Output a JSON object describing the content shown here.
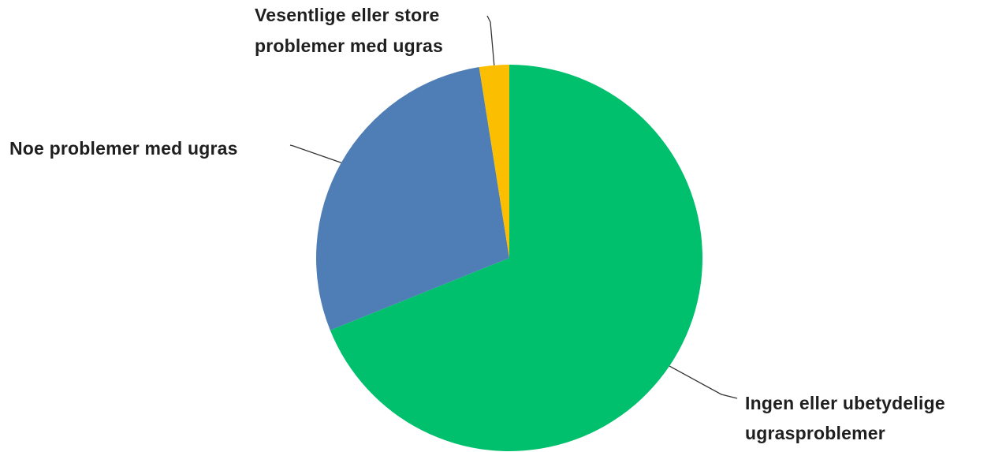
{
  "chart_data": {
    "type": "pie",
    "title": "",
    "slices": [
      {
        "label_lines": [
          "Ingen eller ubetydelige",
          "ugrasproblemer"
        ],
        "value": 68.9,
        "color": "#00c06e"
      },
      {
        "label_lines": [
          "Noe problemer med ugras"
        ],
        "value": 28.6,
        "color": "#4f7db5"
      },
      {
        "label_lines": [
          "Vesentlige eller store",
          "problemer med ugras"
        ],
        "value": 2.5,
        "color": "#fcbe00"
      }
    ],
    "start_angle_deg": 0,
    "direction": "clockwise",
    "legend": "none",
    "labels": "outside-with-leader-lines"
  }
}
